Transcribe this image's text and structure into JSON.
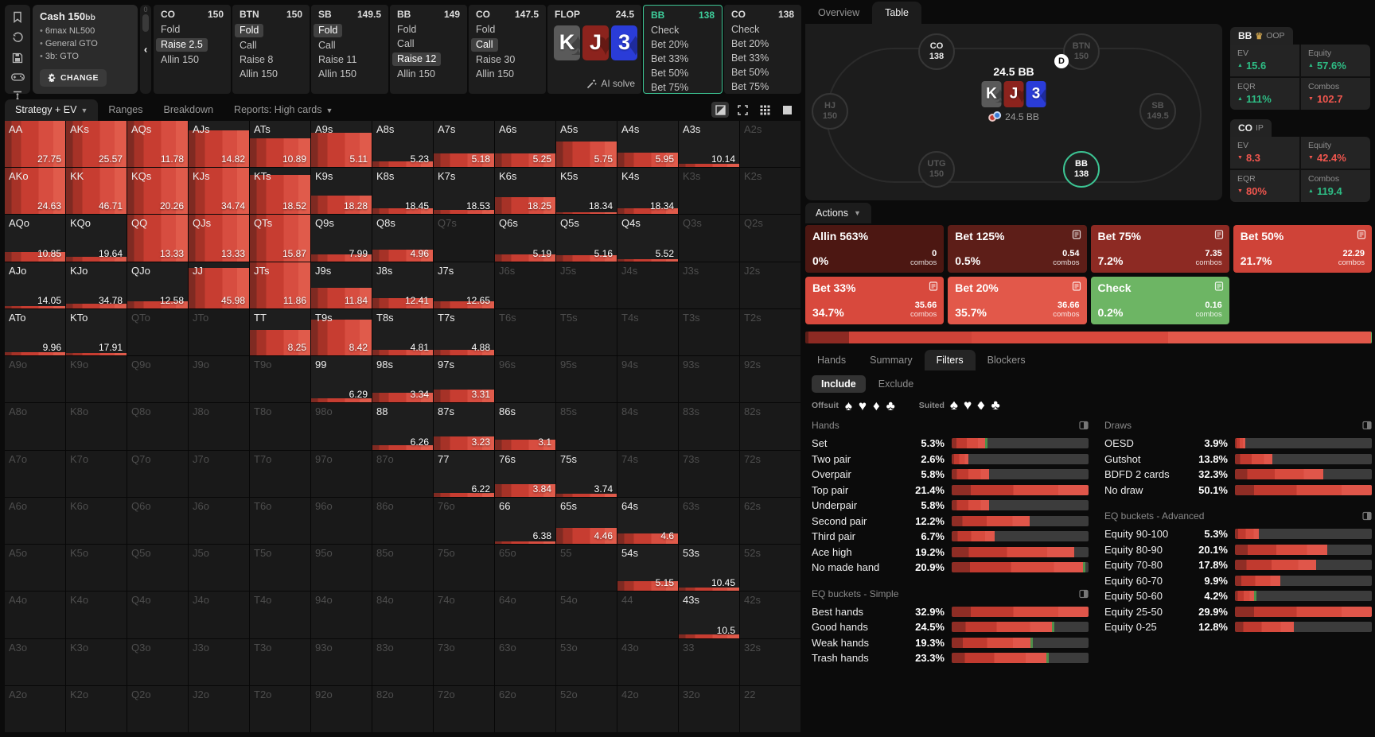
{
  "config": {
    "title": "Cash",
    "stakes": "150bb",
    "lines": [
      "6max NL500",
      "General GTO",
      "3b: GTO"
    ],
    "change_label": "CHANGE"
  },
  "collapse": {
    "top_label": "0"
  },
  "action_line": [
    {
      "pos": "CO",
      "stack": "150",
      "items": [
        {
          "t": "Fold"
        },
        {
          "t": "Raise 2.5",
          "sel": true
        },
        {
          "t": "Allin 150"
        }
      ]
    },
    {
      "pos": "BTN",
      "stack": "150",
      "items": [
        {
          "t": "Fold",
          "sel": true
        },
        {
          "t": "Call"
        },
        {
          "t": "Raise 8"
        },
        {
          "t": "Allin 150"
        }
      ]
    },
    {
      "pos": "SB",
      "stack": "149.5",
      "items": [
        {
          "t": "Fold",
          "sel": true
        },
        {
          "t": "Call"
        },
        {
          "t": "Raise 11"
        },
        {
          "t": "Allin 150"
        }
      ]
    },
    {
      "pos": "BB",
      "stack": "149",
      "items": [
        {
          "t": "Fold"
        },
        {
          "t": "Call"
        },
        {
          "t": "Raise 12",
          "sel": true
        },
        {
          "t": "Allin 150"
        }
      ]
    },
    {
      "pos": "CO",
      "stack": "147.5",
      "items": [
        {
          "t": "Fold"
        },
        {
          "t": "Call",
          "sel": true
        },
        {
          "t": "Raise 30"
        },
        {
          "t": "Allin 150"
        }
      ]
    }
  ],
  "flop": {
    "label": "FLOP",
    "pot": "24.5",
    "ai_label": "AI solve",
    "cards": [
      {
        "rank": "K",
        "suit": "spade"
      },
      {
        "rank": "J",
        "suit": "heart"
      },
      {
        "rank": "3",
        "suit": "diamond"
      }
    ]
  },
  "current_node": {
    "pos": "BB",
    "stack": "138",
    "items": [
      "Check",
      "Bet 20%",
      "Bet 33%",
      "Bet 50%",
      "Bet 75%",
      "Bet 125%"
    ]
  },
  "next_node": {
    "pos": "CO",
    "stack": "138",
    "items": [
      "Check",
      "Bet 20%",
      "Bet 33%",
      "Bet 50%",
      "Bet 75%"
    ]
  },
  "matrix_toolbar": {
    "tabs": [
      {
        "label": "Strategy + EV",
        "caret": true,
        "active": true
      },
      {
        "label": "Ranges"
      },
      {
        "label": "Breakdown"
      },
      {
        "label": "Reports: High cards",
        "caret": true
      }
    ],
    "view_icons": [
      "split-square",
      "corner-handles",
      "grid",
      "solid-square"
    ]
  },
  "matrix": {
    "rows": [
      [
        [
          "AA",
          27.75,
          100
        ],
        [
          "AKs",
          25.57,
          100
        ],
        [
          "AQs",
          11.78,
          100
        ],
        [
          "AJs",
          14.82,
          80
        ],
        [
          "ATs",
          10.89,
          62
        ],
        [
          "A9s",
          5.11,
          75
        ],
        [
          "A8s",
          5.23,
          13
        ],
        [
          "A7s",
          5.18,
          30
        ],
        [
          "A6s",
          5.25,
          30
        ],
        [
          "A5s",
          5.75,
          55
        ],
        [
          "A4s",
          5.95,
          32
        ],
        [
          "A3s",
          10.14,
          8
        ],
        [
          "A2s"
        ]
      ],
      [
        [
          "AKo",
          24.63,
          100
        ],
        [
          "KK",
          46.71,
          100
        ],
        [
          "KQs",
          20.26,
          100
        ],
        [
          "KJs",
          34.74,
          100
        ],
        [
          "KTs",
          18.52,
          85
        ],
        [
          "K9s",
          18.28,
          40
        ],
        [
          "K8s",
          18.45,
          13
        ],
        [
          "K7s",
          18.53,
          10
        ],
        [
          "K6s",
          18.25,
          37
        ],
        [
          "K5s",
          18.34,
          5
        ],
        [
          "K4s",
          18.34,
          13
        ],
        [
          "K3s"
        ],
        [
          "K2s"
        ]
      ],
      [
        [
          "AQo",
          10.85,
          20
        ],
        [
          "KQo",
          19.64,
          10
        ],
        [
          "QQ",
          13.33,
          100
        ],
        [
          "QJs",
          13.33,
          100
        ],
        [
          "QTs",
          15.87,
          100
        ],
        [
          "Q9s",
          7.99,
          15
        ],
        [
          "Q8s",
          4.96,
          26
        ],
        [
          "Q7s"
        ],
        [
          "Q6s",
          5.19,
          15
        ],
        [
          "Q5s",
          5.16,
          13
        ],
        [
          "Q4s",
          5.52,
          4
        ],
        [
          "Q3s"
        ],
        [
          "Q2s"
        ]
      ],
      [
        [
          "AJo",
          14.05,
          5
        ],
        [
          "KJo",
          34.78,
          10
        ],
        [
          "QJo",
          12.58,
          15
        ],
        [
          "JJ",
          45.98,
          88
        ],
        [
          "JTs",
          11.86,
          100
        ],
        [
          "J9s",
          11.84,
          45
        ],
        [
          "J8s",
          12.41,
          22
        ],
        [
          "J7s",
          12.65,
          15
        ],
        [
          "J6s"
        ],
        [
          "J5s"
        ],
        [
          "J4s"
        ],
        [
          "J3s"
        ],
        [
          "J2s"
        ]
      ],
      [
        [
          "ATo",
          9.96,
          7
        ],
        [
          "KTo",
          17.91,
          5
        ],
        [
          "QTo"
        ],
        [
          "JTo"
        ],
        [
          "TT",
          8.25,
          55
        ],
        [
          "T9s",
          8.42,
          78
        ],
        [
          "T8s",
          4.81,
          12
        ],
        [
          "T7s",
          4.88,
          12
        ],
        [
          "T6s"
        ],
        [
          "T5s"
        ],
        [
          "T4s"
        ],
        [
          "T3s"
        ],
        [
          "T2s"
        ]
      ],
      [
        [
          "A9o"
        ],
        [
          "K9o"
        ],
        [
          "Q9o"
        ],
        [
          "J9o"
        ],
        [
          "T9o"
        ],
        [
          "99",
          6.29,
          10
        ],
        [
          "98s",
          3.34,
          22
        ],
        [
          "97s",
          3.31,
          28
        ],
        [
          "96s"
        ],
        [
          "95s"
        ],
        [
          "94s"
        ],
        [
          "93s"
        ],
        [
          "92s"
        ]
      ],
      [
        [
          "A8o"
        ],
        [
          "K8o"
        ],
        [
          "Q8o"
        ],
        [
          "J8o"
        ],
        [
          "T8o"
        ],
        [
          "98o"
        ],
        [
          "88",
          6.26,
          10
        ],
        [
          "87s",
          3.23,
          28
        ],
        [
          "86s",
          3.1,
          22
        ],
        [
          "85s"
        ],
        [
          "84s"
        ],
        [
          "83s"
        ],
        [
          "82s"
        ]
      ],
      [
        [
          "A7o"
        ],
        [
          "K7o"
        ],
        [
          "Q7o"
        ],
        [
          "J7o"
        ],
        [
          "T7o"
        ],
        [
          "97o"
        ],
        [
          "87o"
        ],
        [
          "77",
          6.22,
          8
        ],
        [
          "76s",
          3.84,
          28
        ],
        [
          "75s",
          3.74,
          6
        ],
        [
          "74s"
        ],
        [
          "73s"
        ],
        [
          "72s"
        ]
      ],
      [
        [
          "A6o"
        ],
        [
          "K6o"
        ],
        [
          "Q6o"
        ],
        [
          "J6o"
        ],
        [
          "T6o"
        ],
        [
          "96o"
        ],
        [
          "86o"
        ],
        [
          "76o"
        ],
        [
          "66",
          6.38,
          5
        ],
        [
          "65s",
          4.46,
          35
        ],
        [
          "64s",
          4.6,
          22
        ],
        [
          "63s"
        ],
        [
          "62s"
        ]
      ],
      [
        [
          "A5o"
        ],
        [
          "K5o"
        ],
        [
          "Q5o"
        ],
        [
          "J5o"
        ],
        [
          "T5o"
        ],
        [
          "95o"
        ],
        [
          "85o"
        ],
        [
          "75o"
        ],
        [
          "65o"
        ],
        [
          "55"
        ],
        [
          "54s",
          5.15,
          22
        ],
        [
          "53s",
          10.45,
          8
        ],
        [
          "52s"
        ]
      ],
      [
        [
          "A4o"
        ],
        [
          "K4o"
        ],
        [
          "Q4o"
        ],
        [
          "J4o"
        ],
        [
          "T4o"
        ],
        [
          "94o"
        ],
        [
          "84o"
        ],
        [
          "74o"
        ],
        [
          "64o"
        ],
        [
          "54o"
        ],
        [
          "44"
        ],
        [
          "43s",
          10.5,
          8
        ],
        [
          "42s"
        ]
      ],
      [
        [
          "A3o"
        ],
        [
          "K3o"
        ],
        [
          "Q3o"
        ],
        [
          "J3o"
        ],
        [
          "T3o"
        ],
        [
          "93o"
        ],
        [
          "83o"
        ],
        [
          "73o"
        ],
        [
          "63o"
        ],
        [
          "53o"
        ],
        [
          "43o"
        ],
        [
          "33"
        ],
        [
          "32s"
        ]
      ],
      [
        [
          "A2o"
        ],
        [
          "K2o"
        ],
        [
          "Q2o"
        ],
        [
          "J2o"
        ],
        [
          "T2o"
        ],
        [
          "92o"
        ],
        [
          "82o"
        ],
        [
          "72o"
        ],
        [
          "62o"
        ],
        [
          "52o"
        ],
        [
          "42o"
        ],
        [
          "32o"
        ],
        [
          "22"
        ]
      ]
    ]
  },
  "right": {
    "tabs": [
      {
        "label": "Overview"
      },
      {
        "label": "Table",
        "active": true
      }
    ],
    "table": {
      "pot_label": "24.5 BB",
      "bet_label": "24.5 BB",
      "dealer_label": "D",
      "cards": [
        {
          "rank": "K",
          "suit": "spade"
        },
        {
          "rank": "J",
          "suit": "heart"
        },
        {
          "rank": "3",
          "suit": "diamond"
        }
      ],
      "seats": [
        {
          "pos": "CO",
          "stack": "138",
          "state": "active"
        },
        {
          "pos": "BTN",
          "stack": "150",
          "state": "dim"
        },
        {
          "pos": "HJ",
          "stack": "150",
          "state": "dim"
        },
        {
          "pos": "SB",
          "stack": "149.5",
          "state": "dim"
        },
        {
          "pos": "UTG",
          "stack": "150",
          "state": "dim"
        },
        {
          "pos": "BB",
          "stack": "138",
          "state": "hero"
        }
      ]
    },
    "stats": [
      {
        "pos": "BB",
        "crown": true,
        "tag": "OOP",
        "cells": [
          {
            "label": "EV",
            "value": "15.6",
            "dir": "up"
          },
          {
            "label": "Equity",
            "value": "57.6%",
            "dir": "up"
          },
          {
            "label": "EQR",
            "value": "111%",
            "dir": "up"
          },
          {
            "label": "Combos",
            "value": "102.7",
            "dir": "down"
          }
        ]
      },
      {
        "pos": "CO",
        "crown": false,
        "tag": "IP",
        "cells": [
          {
            "label": "EV",
            "value": "8.3",
            "dir": "down"
          },
          {
            "label": "Equity",
            "value": "42.4%",
            "dir": "down"
          },
          {
            "label": "EQR",
            "value": "80%",
            "dir": "down"
          },
          {
            "label": "Combos",
            "value": "119.4",
            "dir": "up"
          }
        ]
      }
    ],
    "actions": {
      "header": "Actions",
      "cards": [
        {
          "label": "Allin 563%",
          "freq": "0%",
          "combos": "0",
          "combos_word": "combos",
          "color": "#4c1712",
          "icon": false
        },
        {
          "label": "Bet 125%",
          "freq": "0.5%",
          "combos": "0.54",
          "combos_word": "combos",
          "color": "#5d1e18",
          "icon": true
        },
        {
          "label": "Bet 75%",
          "freq": "7.2%",
          "combos": "7.35",
          "combos_word": "combos",
          "color": "#8d2a23",
          "icon": true
        },
        {
          "label": "Bet 50%",
          "freq": "21.7%",
          "combos": "22.29",
          "combos_word": "combos",
          "color": "#cf4338",
          "icon": true
        },
        {
          "label": "Bet 33%",
          "freq": "34.7%",
          "combos": "35.66",
          "combos_word": "combos",
          "color": "#d8493d",
          "icon": true
        },
        {
          "label": "Bet 20%",
          "freq": "35.7%",
          "combos": "36.66",
          "combos_word": "combos",
          "color": "#e2584a",
          "icon": true
        },
        {
          "label": "Check",
          "freq": "0.2%",
          "combos": "0.16",
          "combos_word": "combos",
          "color": "#6db564",
          "icon": true
        }
      ]
    },
    "filters": {
      "tabs": [
        {
          "label": "Hands"
        },
        {
          "label": "Summary"
        },
        {
          "label": "Filters",
          "active": true
        },
        {
          "label": "Blockers"
        }
      ],
      "mode": [
        {
          "label": "Include",
          "active": true
        },
        {
          "label": "Exclude"
        }
      ],
      "offsuit_label": "Offsuit",
      "suited_label": "Suited",
      "suits": [
        "spade",
        "heart",
        "diamond",
        "club"
      ],
      "sections": {
        "hands": {
          "title": "Hands",
          "items": [
            {
              "label": "Set",
              "pct": 5.3,
              "tip": true
            },
            {
              "label": "Two pair",
              "pct": 2.6
            },
            {
              "label": "Overpair",
              "pct": 5.8
            },
            {
              "label": "Top pair",
              "pct": 21.4
            },
            {
              "label": "Underpair",
              "pct": 5.8
            },
            {
              "label": "Second pair",
              "pct": 12.2
            },
            {
              "label": "Third pair",
              "pct": 6.7
            },
            {
              "label": "Ace high",
              "pct": 19.2
            },
            {
              "label": "No made hand",
              "pct": 20.9,
              "tip": true
            }
          ]
        },
        "eq_simple": {
          "title": "EQ buckets - Simple",
          "items": [
            {
              "label": "Best hands",
              "pct": 32.9
            },
            {
              "label": "Good hands",
              "pct": 24.5,
              "tip": true
            },
            {
              "label": "Weak hands",
              "pct": 19.3,
              "tip": true
            },
            {
              "label": "Trash hands",
              "pct": 23.3,
              "tip": true
            }
          ]
        },
        "draws": {
          "title": "Draws",
          "items": [
            {
              "label": "OESD",
              "pct": 3.9
            },
            {
              "label": "Gutshot",
              "pct": 13.8
            },
            {
              "label": "BDFD 2 cards",
              "pct": 32.3
            },
            {
              "label": "No draw",
              "pct": 50.1
            }
          ]
        },
        "eq_adv": {
          "title": "EQ buckets - Advanced",
          "items": [
            {
              "label": "Equity 90-100",
              "pct": 5.3
            },
            {
              "label": "Equity 80-90",
              "pct": 20.1
            },
            {
              "label": "Equity 70-80",
              "pct": 17.8
            },
            {
              "label": "Equity 60-70",
              "pct": 9.9
            },
            {
              "label": "Equity 50-60",
              "pct": 4.2,
              "tip": true
            },
            {
              "label": "Equity 25-50",
              "pct": 29.9
            },
            {
              "label": "Equity 0-25",
              "pct": 12.8
            }
          ]
        }
      }
    }
  }
}
